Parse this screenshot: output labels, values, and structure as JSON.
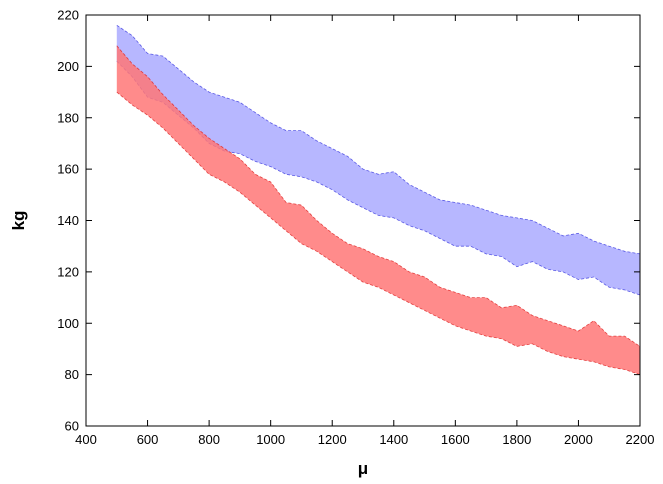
{
  "chart_data": {
    "type": "area",
    "title": "",
    "xlabel": "μ",
    "ylabel": "kg",
    "xlim": [
      400,
      2200
    ],
    "ylim": [
      60,
      220
    ],
    "x_ticks": [
      400,
      600,
      800,
      1000,
      1200,
      1400,
      1600,
      1800,
      2000,
      2200
    ],
    "y_ticks": [
      60,
      80,
      100,
      120,
      140,
      160,
      180,
      200,
      220
    ],
    "grid": false,
    "legend": "none",
    "series": [
      {
        "color": "#aaaaff",
        "edge_color": "#3a3adf",
        "opacity": 0.85,
        "x": [
          500,
          550,
          600,
          650,
          700,
          750,
          800,
          850,
          900,
          950,
          1000,
          1050,
          1100,
          1150,
          1200,
          1250,
          1300,
          1350,
          1400,
          1450,
          1500,
          1550,
          1600,
          1650,
          1700,
          1750,
          1800,
          1850,
          1900,
          1950,
          2000,
          2050,
          2100,
          2150,
          2200
        ],
        "upper": [
          216,
          212,
          205,
          204,
          199,
          194,
          190,
          188,
          186,
          182,
          178,
          175,
          175,
          171,
          168,
          165,
          160,
          158,
          159,
          154,
          151,
          148,
          147,
          146,
          144,
          142,
          141,
          140,
          137,
          134,
          135,
          132,
          130,
          128,
          127
        ],
        "lower": [
          202,
          196,
          188,
          186,
          181,
          176,
          170,
          167,
          166,
          163,
          161,
          158,
          157,
          155,
          152,
          148,
          145,
          142,
          141,
          138,
          136,
          133,
          130,
          130,
          127,
          126,
          122,
          124,
          121,
          120,
          117,
          118,
          114,
          113,
          111
        ]
      },
      {
        "color": "#ff7777",
        "edge_color": "#dd2222",
        "opacity": 0.85,
        "x": [
          500,
          550,
          600,
          650,
          700,
          750,
          800,
          850,
          900,
          950,
          1000,
          1050,
          1100,
          1150,
          1200,
          1250,
          1300,
          1350,
          1400,
          1450,
          1500,
          1550,
          1600,
          1650,
          1700,
          1750,
          1800,
          1850,
          1900,
          1950,
          2000,
          2050,
          2100,
          2150,
          2200
        ],
        "upper": [
          208,
          201,
          196,
          189,
          183,
          177,
          172,
          168,
          164,
          158,
          155,
          147,
          146,
          140,
          135,
          131,
          129,
          126,
          124,
          120,
          118,
          114,
          112,
          110,
          110,
          106,
          107,
          103,
          101,
          99,
          97,
          101,
          95,
          95,
          91
        ],
        "lower": [
          190,
          185,
          181,
          176,
          170,
          164,
          158,
          155,
          151,
          146,
          141,
          136,
          131,
          128,
          124,
          120,
          116,
          114,
          111,
          108,
          105,
          102,
          99,
          97,
          95,
          94,
          91,
          92,
          89,
          87,
          86,
          85,
          83,
          82,
          80
        ]
      }
    ]
  }
}
